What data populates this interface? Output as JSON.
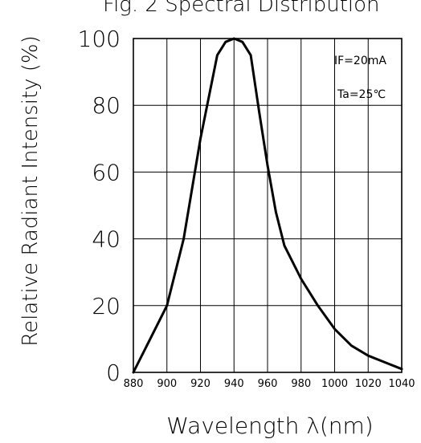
{
  "chart_data": {
    "type": "line",
    "title": "Fig. 2 Spectral Distribution",
    "xlabel": "Wavelength λ(nm)",
    "ylabel": "Relative Radiant Intensity (%)",
    "xlim": [
      880,
      1040
    ],
    "ylim": [
      0,
      100
    ],
    "x_ticks": [
      "880",
      "900",
      "920",
      "940",
      "960",
      "980",
      "1000",
      "1020",
      "1040"
    ],
    "y_ticks": [
      "0",
      "20",
      "40",
      "60",
      "80",
      "100"
    ],
    "grid": true,
    "annotations": [
      "IF=20mA",
      "Ta=25℃"
    ],
    "series": [
      {
        "x": [
          880,
          890,
          900,
          910,
          920,
          930,
          935,
          940,
          945,
          950,
          955,
          960,
          965,
          970,
          980,
          990,
          1000,
          1010,
          1020,
          1030,
          1040
        ],
        "y": [
          0,
          10,
          20,
          40,
          70,
          95,
          99,
          100,
          99,
          95,
          78,
          62,
          48,
          38,
          28,
          20,
          13,
          8,
          5,
          3,
          1
        ]
      }
    ],
    "line_color": "#000000"
  }
}
